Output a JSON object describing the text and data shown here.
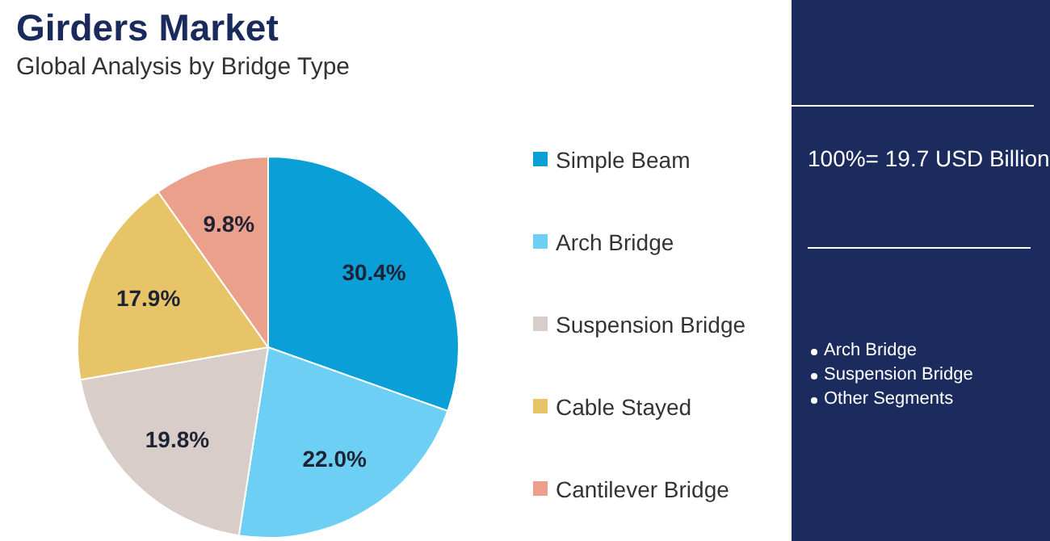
{
  "chart_data": {
    "type": "pie",
    "title": "Girders Market",
    "subtitle": "Global Analysis by Bridge Type",
    "categories": [
      "Simple Beam",
      "Arch Bridge",
      "Suspension Bridge",
      "Cable Stayed",
      "Cantilever Bridge"
    ],
    "values": [
      30.4,
      22.0,
      19.8,
      17.9,
      9.8
    ],
    "value_labels": [
      "30.4%",
      "22.0%",
      "19.8%",
      "17.9%",
      "9.8%"
    ],
    "colors": [
      "#0b9fd8",
      "#6ecff5",
      "#d8cdc8",
      "#e8c468",
      "#eba08c"
    ],
    "legend": "right",
    "annotations": [
      "100%= 19.7 USD Billion",
      "Arch Bridge",
      "Suspension Bridge",
      "Other Segments"
    ]
  }
}
